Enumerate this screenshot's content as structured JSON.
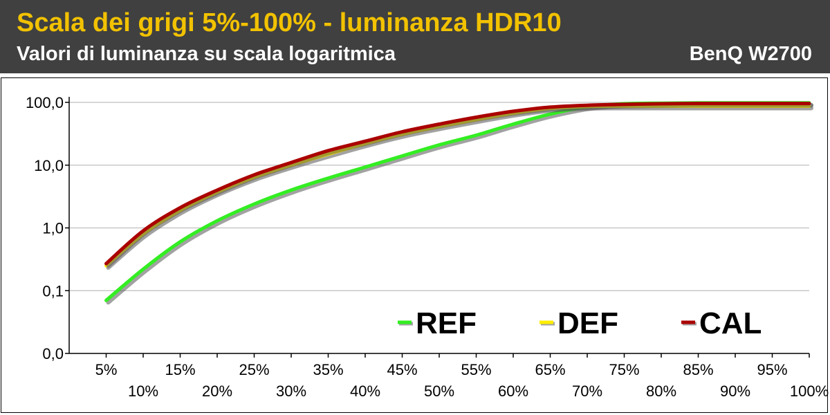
{
  "header": {
    "title": "Scala dei grigi 5%-100% - luminanza HDR10",
    "subtitle": "Valori di luminanza su scala logaritmica",
    "brand": "BenQ W2700"
  },
  "colors": {
    "header_bg": "#404040",
    "title": "#f2c200",
    "REF": "#33ee22",
    "DEF": "#ffee00",
    "CAL": "#aa0000"
  },
  "chart_data": {
    "type": "line",
    "title": "Scala dei grigi 5%-100% - luminanza HDR10",
    "subtitle": "Valori di luminanza su scala logaritmica",
    "y_scale": "log",
    "ylim": [
      0.01,
      100
    ],
    "y_ticks": [
      {
        "value": 100,
        "label": "100,0"
      },
      {
        "value": 10,
        "label": "10,0"
      },
      {
        "value": 1,
        "label": "1,0"
      },
      {
        "value": 0.1,
        "label": "0,1"
      },
      {
        "value": 0.01,
        "label": "0,0"
      }
    ],
    "grid": true,
    "legend_position": "bottom-right",
    "x": [
      5,
      10,
      15,
      20,
      25,
      30,
      35,
      40,
      45,
      50,
      55,
      60,
      65,
      70,
      75,
      80,
      85,
      90,
      95,
      100
    ],
    "x_labels": [
      "5%",
      "10%",
      "15%",
      "20%",
      "25%",
      "30%",
      "35%",
      "40%",
      "45%",
      "50%",
      "55%",
      "60%",
      "65%",
      "70%",
      "75%",
      "80%",
      "85%",
      "90%",
      "95%",
      "100%"
    ],
    "series": [
      {
        "name": "REF",
        "values": [
          0.07,
          0.22,
          0.6,
          1.3,
          2.4,
          4.0,
          6.2,
          9.3,
          14,
          21,
          30,
          45,
          65,
          85,
          95,
          97,
          98,
          98,
          98,
          98
        ]
      },
      {
        "name": "DEF",
        "values": [
          0.25,
          0.8,
          1.9,
          3.7,
          6.4,
          10,
          15,
          22,
          31,
          41,
          53,
          67,
          80,
          86,
          87,
          87,
          87,
          87,
          87,
          87
        ]
      },
      {
        "name": "CAL",
        "values": [
          0.27,
          0.9,
          2.1,
          4.0,
          7.0,
          11,
          17,
          24,
          34,
          45,
          58,
          72,
          84,
          90,
          93,
          95,
          96,
          96,
          96,
          96
        ]
      }
    ]
  }
}
